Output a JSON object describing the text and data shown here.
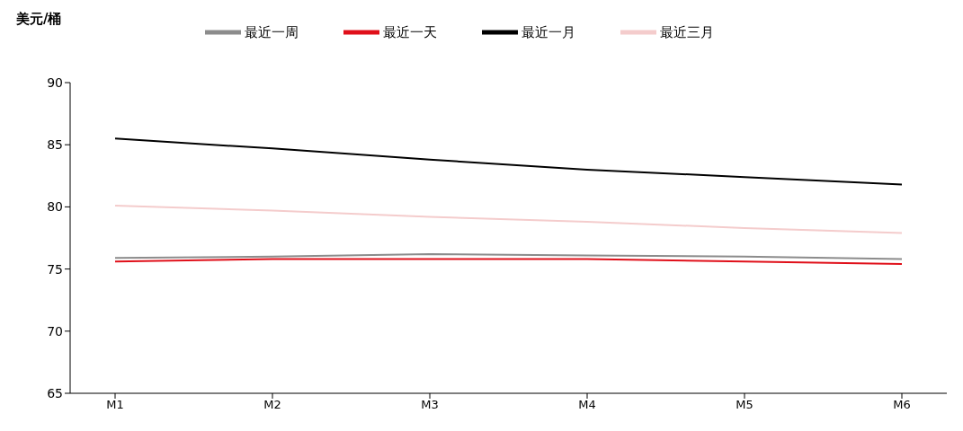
{
  "chart_data": {
    "type": "line",
    "ylabel": "美元/桶",
    "categories": [
      "M1",
      "M2",
      "M3",
      "M4",
      "M5",
      "M6"
    ],
    "series": [
      {
        "name": "最近一天",
        "color": "#e0101a",
        "values": [
          75.6,
          75.8,
          75.8,
          75.8,
          75.6,
          75.4
        ]
      },
      {
        "name": "最近一周",
        "color": "#8c8c8c",
        "values": [
          75.9,
          76.0,
          76.2,
          76.1,
          76.0,
          75.8
        ]
      },
      {
        "name": "最近一月",
        "color": "#000000",
        "values": [
          85.5,
          84.7,
          83.8,
          83.0,
          82.4,
          81.8
        ]
      },
      {
        "name": "最近三月",
        "color": "#f4cccc",
        "values": [
          80.1,
          79.7,
          79.2,
          78.8,
          78.3,
          77.9
        ]
      }
    ],
    "ylim": [
      65,
      90
    ],
    "yticks": [
      65,
      70,
      75,
      80,
      85,
      90
    ],
    "grid": false,
    "legend": "top",
    "marker": "none",
    "line_style": "solid"
  }
}
